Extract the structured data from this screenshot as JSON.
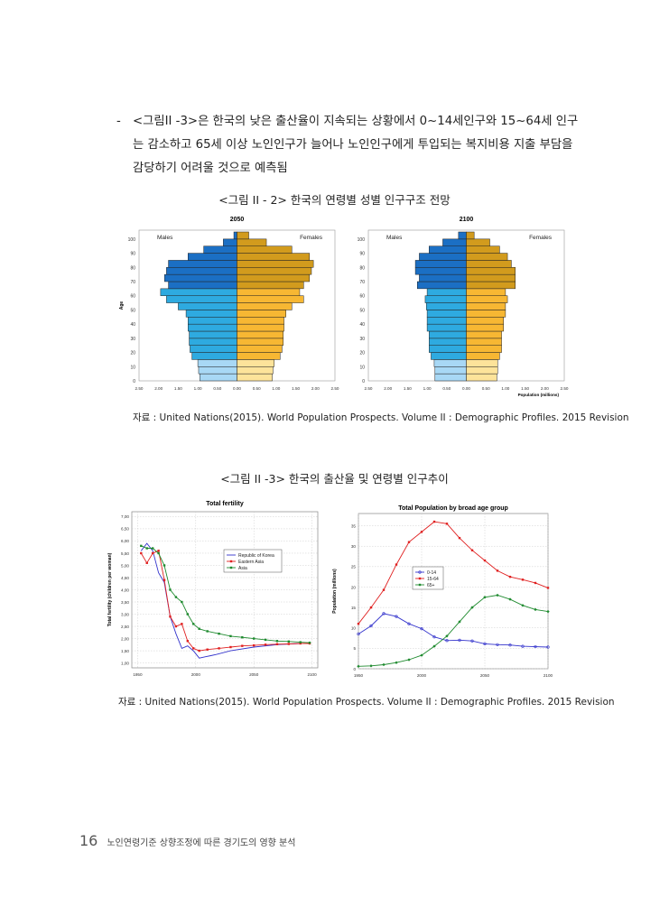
{
  "paragraph": {
    "dash": "-",
    "text": "<그림II -3>은 한국의 낮은 출산율이 지속되는 상황에서 0~14세인구와 15~64세 인구는 감소하고 65세 이상 노인인구가 늘어나 노인인구에게 투입되는 복지비용 지출 부담을 감당하기 어려울 것으로 예측됨"
  },
  "figure1": {
    "caption": "<그림 II - 2> 한국의 연령별 성별 인구구조 전망",
    "source": "자료 : United Nations(2015). World Population Prospects. Volume II : Demographic Profiles. 2015 Revision"
  },
  "figure2": {
    "caption": "<그림 II -3> 한국의 출산율 및 연령별 인구추이",
    "source": "자료 : United Nations(2015). World Population Prospects. Volume II : Demographic Profiles. 2015 Revision"
  },
  "footer": {
    "page": "16",
    "title": "노인연령기준 상향조정에 따른 경기도의 영향 분석"
  },
  "chart_data": [
    {
      "type": "bar",
      "title": "2050",
      "left_label": "Males",
      "right_label": "Females",
      "ylabel": "Age",
      "y_ticks": [
        "0",
        "10",
        "20",
        "30",
        "40",
        "50",
        "60",
        "70",
        "80",
        "90",
        "100"
      ],
      "x_ticks": [
        "2.50",
        "2.00",
        "1.50",
        "1.00",
        "0.50",
        "0.00",
        "0.50",
        "1.00",
        "1.50",
        "2.00",
        "2.50"
      ],
      "xlim": [
        -2.5,
        2.5
      ],
      "age_groups": [
        "0-4",
        "5-9",
        "10-14",
        "15-19",
        "20-24",
        "25-29",
        "30-34",
        "35-39",
        "40-44",
        "45-49",
        "50-54",
        "55-59",
        "60-64",
        "65-69",
        "70-74",
        "75-79",
        "80-84",
        "85-89",
        "90-94",
        "95-99",
        "100+"
      ],
      "males": [
        0.95,
        0.98,
        1.0,
        1.15,
        1.2,
        1.22,
        1.22,
        1.25,
        1.25,
        1.3,
        1.5,
        1.8,
        1.95,
        1.75,
        1.85,
        1.8,
        1.75,
        1.25,
        0.85,
        0.35,
        0.08
      ],
      "females": [
        0.9,
        0.92,
        0.95,
        1.1,
        1.15,
        1.18,
        1.18,
        1.2,
        1.2,
        1.25,
        1.4,
        1.7,
        1.6,
        1.7,
        1.85,
        1.9,
        1.95,
        1.85,
        1.4,
        0.75,
        0.3
      ],
      "colors": {
        "young": "#a8d8f5",
        "working": "#2eaae0",
        "old": "#1b6fc4",
        "f_young": "#fde39a",
        "f_working": "#f7b733",
        "f_old": "#d29b1d"
      }
    },
    {
      "type": "bar",
      "title": "2100",
      "left_label": "Males",
      "right_label": "Females",
      "xlabel": "Population (millions)",
      "y_ticks": [
        "0",
        "10",
        "20",
        "30",
        "40",
        "50",
        "60",
        "70",
        "80",
        "90",
        "100"
      ],
      "x_ticks": [
        "2.50",
        "2.00",
        "1.50",
        "1.00",
        "0.50",
        "0.00",
        "0.50",
        "1.00",
        "1.50",
        "2.00",
        "2.50"
      ],
      "xlim": [
        -2.5,
        2.5
      ],
      "age_groups": [
        "0-4",
        "5-9",
        "10-14",
        "15-19",
        "20-24",
        "25-29",
        "30-34",
        "35-39",
        "40-44",
        "45-49",
        "50-54",
        "55-59",
        "60-64",
        "65-69",
        "70-74",
        "75-79",
        "80-84",
        "85-89",
        "90-94",
        "95-99",
        "100+"
      ],
      "males": [
        0.8,
        0.8,
        0.82,
        0.9,
        0.95,
        0.95,
        0.95,
        1.0,
        1.0,
        1.0,
        1.02,
        1.05,
        1.0,
        1.25,
        1.2,
        1.3,
        1.3,
        1.2,
        0.95,
        0.6,
        0.2
      ],
      "females": [
        0.78,
        0.8,
        0.8,
        0.85,
        0.9,
        0.9,
        0.9,
        0.95,
        0.95,
        1.0,
        1.0,
        1.05,
        1.0,
        1.25,
        1.25,
        1.25,
        1.15,
        1.05,
        0.85,
        0.6,
        0.2
      ],
      "colors": {
        "young": "#a8d8f5",
        "working": "#2eaae0",
        "old": "#1b6fc4",
        "f_young": "#fde39a",
        "f_working": "#f7b733",
        "f_old": "#d29b1d"
      }
    },
    {
      "type": "line",
      "title": "Total fertility",
      "ylabel": "Total fertility (children per woman)",
      "x_ticks": [
        "1950",
        "2000",
        "2050",
        "2100"
      ],
      "y_ticks": [
        "1,00",
        "1,50",
        "2,00",
        "2,50",
        "3,00",
        "3,50",
        "4,00",
        "4,50",
        "5,00",
        "5,50",
        "6,00",
        "6,50",
        "7,00"
      ],
      "xlim": [
        1945,
        2105
      ],
      "ylim": [
        0.8,
        7.2
      ],
      "series": [
        {
          "name": "Republic of Korea",
          "color": "#3333cc",
          "marker": "none",
          "x": [
            1953,
            1958,
            1963,
            1968,
            1973,
            1978,
            1983,
            1988,
            1993,
            1998,
            2003,
            2008,
            2013,
            2018,
            2030,
            2050,
            2070,
            2090,
            2098
          ],
          "y": [
            5.6,
            5.9,
            5.6,
            4.7,
            4.3,
            2.9,
            2.2,
            1.6,
            1.7,
            1.5,
            1.2,
            1.25,
            1.3,
            1.35,
            1.5,
            1.65,
            1.75,
            1.8,
            1.8
          ]
        },
        {
          "name": "Eastern Asia",
          "color": "#e02020",
          "marker": "square",
          "x": [
            1953,
            1958,
            1963,
            1968,
            1973,
            1978,
            1983,
            1988,
            1993,
            1998,
            2003,
            2010,
            2020,
            2030,
            2040,
            2050,
            2060,
            2070,
            2080,
            2090,
            2098
          ],
          "y": [
            5.5,
            5.1,
            5.5,
            5.6,
            4.4,
            2.9,
            2.5,
            2.6,
            1.9,
            1.6,
            1.5,
            1.55,
            1.6,
            1.65,
            1.7,
            1.72,
            1.75,
            1.77,
            1.78,
            1.8,
            1.8
          ]
        },
        {
          "name": "Asia",
          "color": "#1e8a2e",
          "marker": "square",
          "x": [
            1953,
            1958,
            1963,
            1968,
            1973,
            1978,
            1983,
            1988,
            1993,
            1998,
            2003,
            2010,
            2020,
            2030,
            2040,
            2050,
            2060,
            2070,
            2080,
            2090,
            2098
          ],
          "y": [
            5.8,
            5.7,
            5.7,
            5.5,
            5.0,
            4.0,
            3.7,
            3.5,
            3.0,
            2.6,
            2.4,
            2.3,
            2.2,
            2.1,
            2.05,
            2.0,
            1.95,
            1.9,
            1.88,
            1.85,
            1.83
          ]
        }
      ]
    },
    {
      "type": "line",
      "title": "Total Population by broad age group",
      "ylabel": "Population (millions)",
      "x_ticks": [
        "1950",
        "2000",
        "2050",
        "2100"
      ],
      "y_ticks": [
        "0",
        "5",
        "10",
        "15",
        "20",
        "25",
        "30",
        "35"
      ],
      "xlim": [
        1950,
        2100
      ],
      "ylim": [
        0,
        38
      ],
      "series": [
        {
          "name": "0-14",
          "color": "#3333cc",
          "marker": "circle",
          "x": [
            1950,
            1960,
            1970,
            1980,
            1990,
            2000,
            2010,
            2020,
            2030,
            2040,
            2050,
            2060,
            2070,
            2080,
            2090,
            2100
          ],
          "y": [
            8.5,
            10.5,
            13.5,
            12.8,
            11.0,
            9.8,
            7.8,
            6.9,
            7.0,
            6.8,
            6.1,
            5.9,
            5.8,
            5.5,
            5.4,
            5.3
          ]
        },
        {
          "name": "15-64",
          "color": "#e02020",
          "marker": "square",
          "x": [
            1950,
            1960,
            1970,
            1980,
            1990,
            2000,
            2010,
            2020,
            2030,
            2040,
            2050,
            2060,
            2070,
            2080,
            2090,
            2100
          ],
          "y": [
            11.0,
            15.0,
            19.3,
            25.5,
            31.0,
            33.5,
            36.0,
            35.5,
            32.0,
            29.0,
            26.5,
            24.0,
            22.5,
            21.8,
            21.0,
            19.8
          ]
        },
        {
          "name": "65+",
          "color": "#1e8a2e",
          "marker": "diamond",
          "x": [
            1950,
            1960,
            1970,
            1980,
            1990,
            2000,
            2010,
            2020,
            2030,
            2040,
            2050,
            2060,
            2070,
            2080,
            2090,
            2100
          ],
          "y": [
            0.6,
            0.7,
            1.0,
            1.5,
            2.2,
            3.3,
            5.5,
            8.0,
            11.5,
            15.0,
            17.5,
            18.0,
            17.0,
            15.5,
            14.5,
            14.0
          ]
        }
      ]
    }
  ]
}
